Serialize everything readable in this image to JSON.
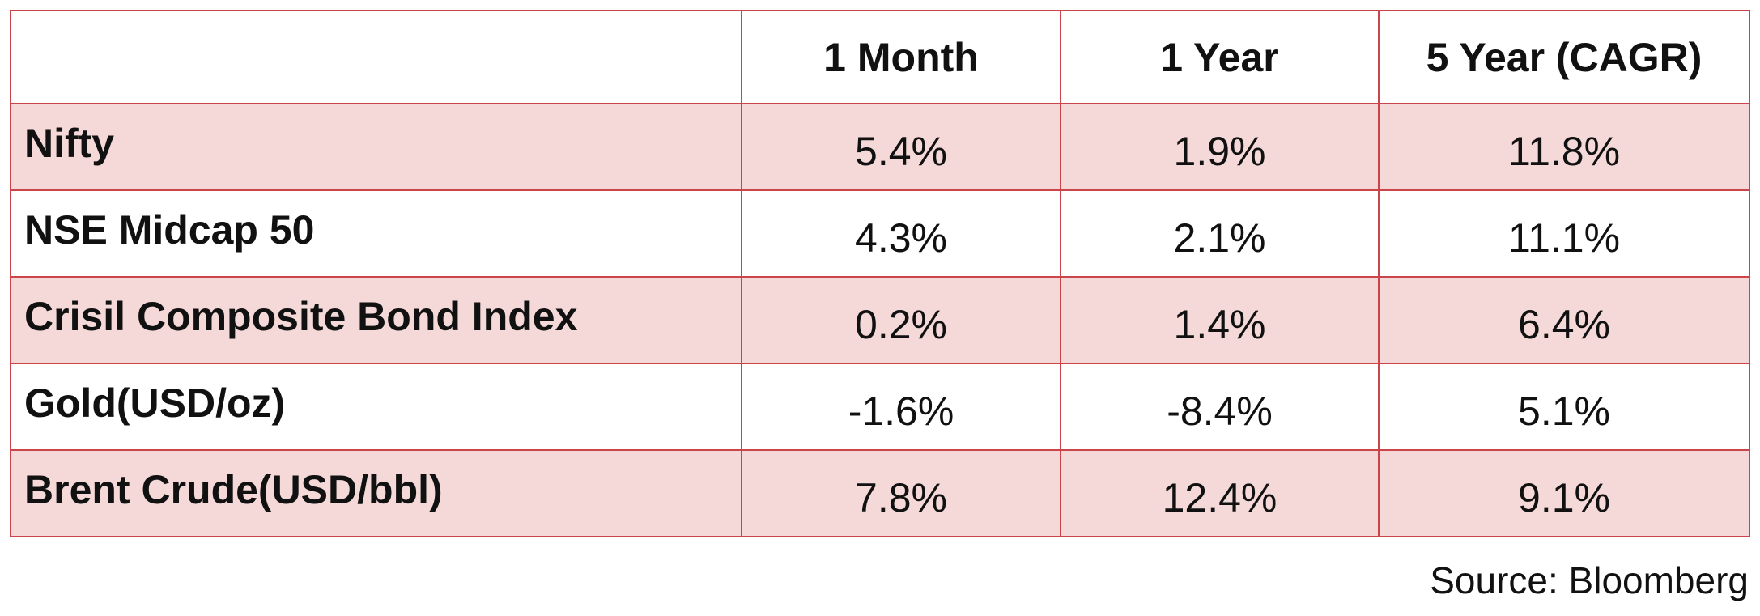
{
  "chart_data": {
    "type": "table",
    "columns": [
      "",
      "1 Month",
      "1 Year",
      "5 Year (CAGR)"
    ],
    "rows": [
      {
        "label": "Nifty",
        "values": [
          "5.4%",
          "1.9%",
          "11.8%"
        ]
      },
      {
        "label": "NSE Midcap 50",
        "values": [
          "4.3%",
          "2.1%",
          "11.1%"
        ]
      },
      {
        "label": "Crisil Composite Bond Index",
        "values": [
          "0.2%",
          "1.4%",
          "6.4%"
        ]
      },
      {
        "label": "Gold(USD/oz)",
        "values": [
          "-1.6%",
          "-8.4%",
          "5.1%"
        ]
      },
      {
        "label": "Brent Crude(USD/bbl)",
        "values": [
          "7.8%",
          "12.4%",
          "9.1%"
        ]
      }
    ],
    "source": "Source: Bloomberg",
    "colors": {
      "border": "#c9454a",
      "shaded_row": "#f5d9d8",
      "plain_row": "#ffffff"
    }
  }
}
